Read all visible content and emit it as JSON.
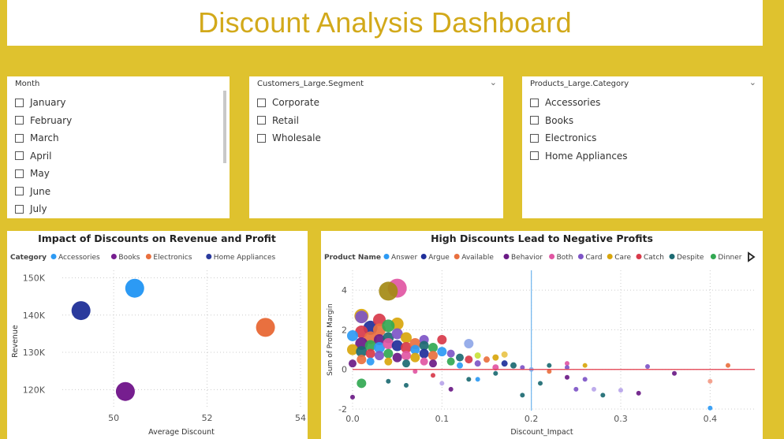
{
  "dashboard_title": "Discount Analysis Dashboard",
  "slicers": {
    "month": {
      "label": "Month",
      "items": [
        "January",
        "February",
        "March",
        "April",
        "May",
        "June",
        "July"
      ]
    },
    "segment": {
      "label": "Customers_Large.Segment",
      "items": [
        "Corporate",
        "Retail",
        "Wholesale"
      ]
    },
    "category": {
      "label": "Products_Large.Category",
      "items": [
        "Accessories",
        "Books",
        "Electronics",
        "Home Appliances"
      ]
    }
  },
  "colors": {
    "accent": "#dfc22e",
    "title": "#d2a91a"
  },
  "chart_data": [
    {
      "type": "scatter",
      "title": "Impact of Discounts on Revenue and Profit",
      "legend_title": "Category",
      "xlabel": "Average Discount",
      "ylabel": "Revenue",
      "xlim": [
        48.9,
        54
      ],
      "ylim": [
        115000,
        152000
      ],
      "xticks": [
        50,
        52,
        54
      ],
      "yticks": [
        120000,
        130000,
        140000,
        150000
      ],
      "ytick_labels": [
        "120K",
        "130K",
        "140K",
        "150K"
      ],
      "series": [
        {
          "name": "Accessories",
          "color": "#2c9af4",
          "points": [
            {
              "x": 50.45,
              "y": 147200
            }
          ]
        },
        {
          "name": "Books",
          "color": "#761e8f",
          "points": [
            {
              "x": 50.25,
              "y": 119500
            }
          ]
        },
        {
          "name": "Electronics",
          "color": "#e9703f",
          "points": [
            {
              "x": 53.25,
              "y": 136700
            }
          ]
        },
        {
          "name": "Home Appliances",
          "color": "#2a3a9d",
          "points": [
            {
              "x": 49.3,
              "y": 141200
            }
          ]
        }
      ]
    },
    {
      "type": "scatter",
      "title": "High Discounts Lead to Negative Profits",
      "legend_title": "Product Name",
      "xlabel": "Discount_Impact",
      "ylabel": "Sum of Profit Margin",
      "xlim": [
        0,
        0.45
      ],
      "ylim": [
        -2,
        5
      ],
      "xticks": [
        0,
        0.1,
        0.2,
        0.3,
        0.4
      ],
      "xtick_labels": [
        "0.0",
        "0.1",
        "0.2",
        "0.3",
        "0.4"
      ],
      "yticks": [
        -2,
        0,
        2,
        4
      ],
      "reference_lines": {
        "x": 0.2,
        "y": 0
      },
      "legend": [
        {
          "name": "Answer",
          "color": "#2c9af4"
        },
        {
          "name": "Argue",
          "color": "#1f2f9a"
        },
        {
          "name": "Available",
          "color": "#e9703f"
        },
        {
          "name": "Behavior",
          "color": "#6a1a86"
        },
        {
          "name": "Both",
          "color": "#e156a3"
        },
        {
          "name": "Card",
          "color": "#7e55c7"
        },
        {
          "name": "Care",
          "color": "#d8a60c"
        },
        {
          "name": "Catch",
          "color": "#d83a4a"
        },
        {
          "name": "Despite",
          "color": "#1c6a72"
        },
        {
          "name": "Dinner",
          "color": "#32a852"
        }
      ],
      "points": [
        {
          "x": 0.05,
          "y": 4.1,
          "s": 12,
          "c": "#e156a3"
        },
        {
          "x": 0.04,
          "y": 3.95,
          "s": 12,
          "c": "#a48a15"
        },
        {
          "x": 0.01,
          "y": 2.7,
          "s": 9,
          "c": "#d8a60c"
        },
        {
          "x": 0.01,
          "y": 2.65,
          "s": 8,
          "c": "#7e55c7"
        },
        {
          "x": 0.03,
          "y": 2.5,
          "s": 8,
          "c": "#d83a4a"
        },
        {
          "x": 0.05,
          "y": 2.3,
          "s": 8,
          "c": "#d8a60c"
        },
        {
          "x": 0.02,
          "y": 2.1,
          "s": 9,
          "c": "#1f2f9a"
        },
        {
          "x": 0.03,
          "y": 2.0,
          "s": 8,
          "c": "#e9703f"
        },
        {
          "x": 0.04,
          "y": 2.2,
          "s": 8,
          "c": "#32a852"
        },
        {
          "x": 0.01,
          "y": 1.9,
          "s": 8,
          "c": "#d83a4a"
        },
        {
          "x": 0.0,
          "y": 1.7,
          "s": 7,
          "c": "#2c9af4"
        },
        {
          "x": 0.02,
          "y": 1.6,
          "s": 8,
          "c": "#e9703f"
        },
        {
          "x": 0.03,
          "y": 1.5,
          "s": 7,
          "c": "#6a1a86"
        },
        {
          "x": 0.04,
          "y": 1.6,
          "s": 7,
          "c": "#1c6a72"
        },
        {
          "x": 0.05,
          "y": 1.8,
          "s": 7,
          "c": "#7e55c7"
        },
        {
          "x": 0.06,
          "y": 1.6,
          "s": 7,
          "c": "#d8a60c"
        },
        {
          "x": 0.01,
          "y": 1.3,
          "s": 8,
          "c": "#6a1a86"
        },
        {
          "x": 0.02,
          "y": 1.2,
          "s": 7,
          "c": "#32a852"
        },
        {
          "x": 0.03,
          "y": 1.1,
          "s": 7,
          "c": "#2c9af4"
        },
        {
          "x": 0.04,
          "y": 1.3,
          "s": 7,
          "c": "#e156a3"
        },
        {
          "x": 0.05,
          "y": 1.2,
          "s": 7,
          "c": "#1f2f9a"
        },
        {
          "x": 0.06,
          "y": 1.1,
          "s": 7,
          "c": "#d83a4a"
        },
        {
          "x": 0.07,
          "y": 1.3,
          "s": 7,
          "c": "#e9703f"
        },
        {
          "x": 0.08,
          "y": 1.5,
          "s": 6,
          "c": "#7e55c7"
        },
        {
          "x": 0.1,
          "y": 1.5,
          "s": 6,
          "c": "#d83a4a"
        },
        {
          "x": 0.08,
          "y": 1.2,
          "s": 6,
          "c": "#1c6a72"
        },
        {
          "x": 0.09,
          "y": 1.1,
          "s": 6,
          "c": "#32a852"
        },
        {
          "x": 0.07,
          "y": 1.0,
          "s": 6,
          "c": "#2c9af4"
        },
        {
          "x": 0.0,
          "y": 1.0,
          "s": 7,
          "c": "#d8a60c"
        },
        {
          "x": 0.01,
          "y": 0.9,
          "s": 7,
          "c": "#1c6a72"
        },
        {
          "x": 0.02,
          "y": 0.8,
          "s": 6,
          "c": "#d83a4a"
        },
        {
          "x": 0.03,
          "y": 0.7,
          "s": 6,
          "c": "#7e55c7"
        },
        {
          "x": 0.04,
          "y": 0.8,
          "s": 6,
          "c": "#32a852"
        },
        {
          "x": 0.05,
          "y": 0.6,
          "s": 6,
          "c": "#6a1a86"
        },
        {
          "x": 0.06,
          "y": 0.7,
          "s": 6,
          "c": "#e156a3"
        },
        {
          "x": 0.07,
          "y": 0.6,
          "s": 6,
          "c": "#d8a60c"
        },
        {
          "x": 0.08,
          "y": 0.8,
          "s": 6,
          "c": "#1f2f9a"
        },
        {
          "x": 0.09,
          "y": 0.7,
          "s": 6,
          "c": "#e9703f"
        },
        {
          "x": 0.1,
          "y": 0.9,
          "s": 6,
          "c": "#2c9af4"
        },
        {
          "x": 0.11,
          "y": 0.8,
          "s": 5,
          "c": "#7e55c7"
        },
        {
          "x": 0.12,
          "y": 0.6,
          "s": 5,
          "c": "#1c6a72"
        },
        {
          "x": 0.13,
          "y": 1.3,
          "s": 6,
          "c": "#8fa7e8"
        },
        {
          "x": 0.13,
          "y": 0.5,
          "s": 5,
          "c": "#d83a4a"
        },
        {
          "x": 0.14,
          "y": 0.7,
          "s": 4,
          "c": "#c8e23a"
        },
        {
          "x": 0.15,
          "y": 0.5,
          "s": 4,
          "c": "#e9703f"
        },
        {
          "x": 0.16,
          "y": 0.6,
          "s": 4,
          "c": "#d8a60c"
        },
        {
          "x": 0.17,
          "y": 0.75,
          "s": 4,
          "c": "#e9c44a"
        },
        {
          "x": 0.18,
          "y": 0.2,
          "s": 4,
          "c": "#1c6a72"
        },
        {
          "x": 0.11,
          "y": 0.4,
          "s": 5,
          "c": "#32a852"
        },
        {
          "x": 0.09,
          "y": 0.3,
          "s": 5,
          "c": "#6a1a86"
        },
        {
          "x": 0.08,
          "y": 0.4,
          "s": 5,
          "c": "#e156a3"
        },
        {
          "x": 0.12,
          "y": 0.2,
          "s": 4,
          "c": "#2c9af4"
        },
        {
          "x": 0.14,
          "y": 0.3,
          "s": 4,
          "c": "#7e55c7"
        },
        {
          "x": 0.16,
          "y": 0.1,
          "s": 4,
          "c": "#e156a3"
        },
        {
          "x": 0.17,
          "y": 0.3,
          "s": 4,
          "c": "#1f2f9a"
        },
        {
          "x": 0.06,
          "y": 0.3,
          "s": 5,
          "c": "#1c6a72"
        },
        {
          "x": 0.04,
          "y": 0.4,
          "s": 5,
          "c": "#d8a60c"
        },
        {
          "x": 0.02,
          "y": 0.4,
          "s": 5,
          "c": "#2c9af4"
        },
        {
          "x": 0.01,
          "y": 0.5,
          "s": 6,
          "c": "#e9703f"
        },
        {
          "x": 0.0,
          "y": 0.3,
          "s": 5,
          "c": "#6a1a86"
        },
        {
          "x": 0.01,
          "y": -0.7,
          "s": 6,
          "c": "#32a852"
        },
        {
          "x": 0.0,
          "y": -1.4,
          "s": 3,
          "c": "#6a1a86"
        },
        {
          "x": 0.04,
          "y": -0.6,
          "s": 3,
          "c": "#1c6a72"
        },
        {
          "x": 0.06,
          "y": -0.8,
          "s": 3,
          "c": "#1c6a72"
        },
        {
          "x": 0.07,
          "y": -0.1,
          "s": 3,
          "c": "#e156a3"
        },
        {
          "x": 0.09,
          "y": -0.3,
          "s": 3,
          "c": "#d83a4a"
        },
        {
          "x": 0.1,
          "y": -0.7,
          "s": 3,
          "c": "#b9a5ea"
        },
        {
          "x": 0.11,
          "y": -1.0,
          "s": 3,
          "c": "#6a1a86"
        },
        {
          "x": 0.13,
          "y": -0.5,
          "s": 3,
          "c": "#1c6a72"
        },
        {
          "x": 0.14,
          "y": -0.5,
          "s": 3,
          "c": "#2c9af4"
        },
        {
          "x": 0.16,
          "y": -0.2,
          "s": 3,
          "c": "#1c6a72"
        },
        {
          "x": 0.19,
          "y": 0.1,
          "s": 3,
          "c": "#7e55c7"
        },
        {
          "x": 0.2,
          "y": 0.0,
          "s": 3,
          "c": "#8fa7e8"
        },
        {
          "x": 0.22,
          "y": 0.2,
          "s": 3,
          "c": "#1c6a72"
        },
        {
          "x": 0.22,
          "y": -0.1,
          "s": 3,
          "c": "#e9703f"
        },
        {
          "x": 0.24,
          "y": 0.3,
          "s": 3,
          "c": "#e156a3"
        },
        {
          "x": 0.24,
          "y": 0.1,
          "s": 3,
          "c": "#7e55c7"
        },
        {
          "x": 0.26,
          "y": 0.2,
          "s": 3,
          "c": "#d8a60c"
        },
        {
          "x": 0.24,
          "y": -0.4,
          "s": 3,
          "c": "#6a1a86"
        },
        {
          "x": 0.26,
          "y": -0.5,
          "s": 3,
          "c": "#7e55c7"
        },
        {
          "x": 0.27,
          "y": -1.0,
          "s": 3,
          "c": "#b9a5ea"
        },
        {
          "x": 0.28,
          "y": -1.3,
          "s": 3,
          "c": "#1c6a72"
        },
        {
          "x": 0.25,
          "y": -1.0,
          "s": 3,
          "c": "#7e55c7"
        },
        {
          "x": 0.3,
          "y": -1.05,
          "s": 3,
          "c": "#b9a5ea"
        },
        {
          "x": 0.32,
          "y": -1.2,
          "s": 3,
          "c": "#6a1a86"
        },
        {
          "x": 0.33,
          "y": 0.15,
          "s": 3,
          "c": "#7e55c7"
        },
        {
          "x": 0.36,
          "y": -0.2,
          "s": 3,
          "c": "#6a1a86"
        },
        {
          "x": 0.21,
          "y": -0.7,
          "s": 3,
          "c": "#1c6a72"
        },
        {
          "x": 0.19,
          "y": -1.3,
          "s": 3,
          "c": "#1c6a72"
        },
        {
          "x": 0.4,
          "y": -0.6,
          "s": 3,
          "c": "#f39a86"
        },
        {
          "x": 0.4,
          "y": -1.95,
          "s": 3,
          "c": "#2c9af4"
        },
        {
          "x": 0.42,
          "y": 0.2,
          "s": 3,
          "c": "#e9703f"
        }
      ]
    }
  ]
}
